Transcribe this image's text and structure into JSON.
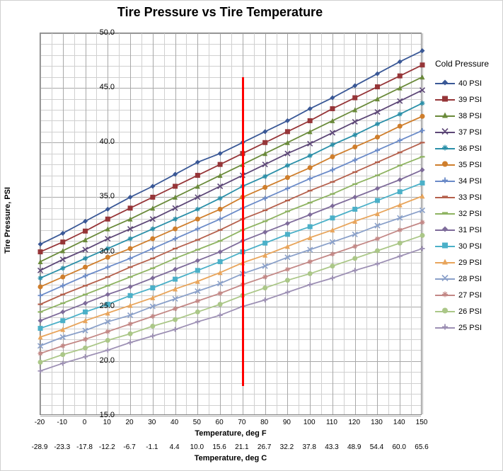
{
  "chart": {
    "type": "line",
    "title": "Tire Pressure vs Tire Temperature",
    "title_fontsize": 18,
    "background_color": "#ffffff",
    "grid_color_minor": "#d0d0d0",
    "grid_color_major": "#a8a8a8",
    "y_axis": {
      "label": "Tire Pressure, PSI",
      "min": 15.0,
      "max": 50.0,
      "tick_step": 5.0,
      "minor_step": 1.0,
      "tick_format": "0.0"
    },
    "x_axis": {
      "label_f": "Temperature, deg F",
      "label_c": "Temperature, deg C",
      "min": -20,
      "max": 150,
      "tick_step": 10,
      "ticks_f": [
        -20,
        -10,
        0,
        10,
        20,
        30,
        40,
        50,
        60,
        70,
        80,
        90,
        100,
        110,
        120,
        130,
        140,
        150
      ],
      "ticks_c": [
        "-28.9",
        "-23.3",
        "-17.8",
        "-12.2",
        "-6.7",
        "-1.1",
        "4.4",
        "10.0",
        "15.6",
        "21.1",
        "26.7",
        "32.2",
        "37.8",
        "43.3",
        "48.9",
        "54.4",
        "60.0",
        "65.6"
      ]
    },
    "reference_line": {
      "x": 70,
      "color": "#ff0000",
      "width": 3,
      "y_min": 17.7,
      "y_max": 46.0
    },
    "legend": {
      "title": "Cold Pressure",
      "position": "right"
    },
    "x_values": [
      -20,
      -10,
      0,
      10,
      20,
      30,
      40,
      50,
      60,
      70,
      80,
      90,
      100,
      110,
      120,
      130,
      140,
      150
    ],
    "series": [
      {
        "name": "40 PSI",
        "color": "#3a5896",
        "marker": "diamond",
        "y": [
          30.7,
          31.7,
          32.8,
          33.9,
          35.0,
          36.0,
          37.1,
          38.2,
          39.0,
          40.0,
          41.0,
          42.0,
          43.1,
          44.1,
          45.2,
          46.3,
          47.4,
          48.4
        ]
      },
      {
        "name": "39 PSI",
        "color": "#963538",
        "marker": "square",
        "y": [
          30.0,
          30.9,
          31.9,
          33.0,
          34.0,
          35.0,
          36.0,
          37.0,
          38.0,
          39.0,
          40.0,
          41.0,
          42.0,
          43.1,
          44.1,
          45.1,
          46.1,
          47.1
        ]
      },
      {
        "name": "38 PSI",
        "color": "#6a8a3a",
        "marker": "triangle",
        "y": [
          29.1,
          30.1,
          31.1,
          32.1,
          33.0,
          34.0,
          35.0,
          36.0,
          37.0,
          38.0,
          39.0,
          40.0,
          41.0,
          42.0,
          43.0,
          44.0,
          45.0,
          46.0
        ]
      },
      {
        "name": "37 PSI",
        "color": "#5d4777",
        "marker": "x",
        "y": [
          28.3,
          29.3,
          30.2,
          31.2,
          32.1,
          33.0,
          34.0,
          35.0,
          36.0,
          37.0,
          38.0,
          39.0,
          39.9,
          40.9,
          41.9,
          42.8,
          43.8,
          44.8
        ]
      },
      {
        "name": "36 PSI",
        "color": "#2a8fa8",
        "marker": "star",
        "y": [
          27.6,
          28.5,
          29.4,
          30.3,
          31.2,
          32.1,
          33.0,
          33.9,
          34.9,
          36.0,
          36.9,
          37.9,
          38.8,
          39.8,
          40.7,
          41.7,
          42.6,
          43.6
        ]
      },
      {
        "name": "35 PSI",
        "color": "#cf7e2c",
        "marker": "circle",
        "y": [
          26.8,
          27.7,
          28.6,
          29.5,
          30.3,
          31.2,
          32.1,
          33.0,
          33.9,
          35.0,
          35.9,
          36.8,
          37.7,
          38.7,
          39.6,
          40.5,
          41.5,
          42.4
        ]
      },
      {
        "name": "34 PSI",
        "color": "#6b8bc8",
        "marker": "plus",
        "y": [
          26.0,
          26.9,
          27.8,
          28.6,
          29.4,
          30.3,
          31.2,
          32.1,
          33.0,
          34.0,
          34.9,
          35.8,
          36.7,
          37.5,
          38.4,
          39.3,
          40.2,
          41.1
        ]
      },
      {
        "name": "33 PSI",
        "color": "#b5604c",
        "marker": "dash",
        "y": [
          25.2,
          26.1,
          26.9,
          27.7,
          28.6,
          29.4,
          30.3,
          31.1,
          32.0,
          33.0,
          33.8,
          34.7,
          35.6,
          36.4,
          37.3,
          38.2,
          39.1,
          40.0
        ]
      },
      {
        "name": "32 PSI",
        "color": "#8eb361",
        "marker": "dash",
        "y": [
          24.5,
          25.3,
          26.1,
          26.9,
          27.7,
          28.5,
          29.4,
          30.2,
          31.0,
          32.0,
          32.8,
          33.7,
          34.5,
          35.3,
          36.2,
          37.0,
          37.9,
          38.7
        ]
      },
      {
        "name": "31 PSI",
        "color": "#7e6b9a",
        "marker": "diamond",
        "y": [
          23.7,
          24.5,
          25.3,
          26.1,
          26.8,
          27.6,
          28.4,
          29.2,
          30.0,
          31.0,
          31.8,
          32.6,
          33.4,
          34.2,
          35.0,
          35.8,
          36.6,
          37.5
        ]
      },
      {
        "name": "30 PSI",
        "color": "#4bb0c8",
        "marker": "square",
        "y": [
          23.0,
          23.7,
          24.5,
          25.2,
          26.0,
          26.7,
          27.5,
          28.3,
          29.1,
          30.0,
          30.8,
          31.6,
          32.3,
          33.1,
          33.9,
          34.7,
          35.5,
          36.3
        ]
      },
      {
        "name": "29 PSI",
        "color": "#e8a55c",
        "marker": "triangle",
        "y": [
          22.2,
          22.9,
          23.7,
          24.4,
          25.1,
          25.8,
          26.6,
          27.3,
          28.1,
          29.0,
          29.7,
          30.5,
          31.3,
          32.0,
          32.8,
          33.5,
          34.3,
          35.1
        ]
      },
      {
        "name": "28 PSI",
        "color": "#8aa0c9",
        "marker": "x",
        "y": [
          21.4,
          22.2,
          22.8,
          23.6,
          24.2,
          25.0,
          25.7,
          26.4,
          27.1,
          28.0,
          28.7,
          29.5,
          30.2,
          30.9,
          31.6,
          32.4,
          33.1,
          33.8
        ]
      },
      {
        "name": "27 PSI",
        "color": "#c38886",
        "marker": "star",
        "y": [
          20.7,
          21.4,
          22.0,
          22.7,
          23.4,
          24.1,
          24.8,
          25.5,
          26.2,
          27.0,
          27.7,
          28.4,
          29.1,
          29.8,
          30.5,
          31.2,
          32.0,
          32.7
        ]
      },
      {
        "name": "26 PSI",
        "color": "#abc788",
        "marker": "circle",
        "y": [
          19.9,
          20.6,
          21.2,
          21.9,
          22.5,
          23.2,
          23.8,
          24.5,
          25.2,
          26.0,
          26.7,
          27.4,
          28.0,
          28.7,
          29.4,
          30.1,
          30.8,
          31.5
        ]
      },
      {
        "name": "25 PSI",
        "color": "#9d90b4",
        "marker": "plus",
        "y": [
          19.1,
          19.8,
          20.4,
          21.0,
          21.7,
          22.3,
          22.9,
          23.6,
          24.2,
          25.0,
          25.6,
          26.3,
          27.0,
          27.6,
          28.3,
          28.9,
          29.6,
          30.3
        ]
      }
    ]
  }
}
